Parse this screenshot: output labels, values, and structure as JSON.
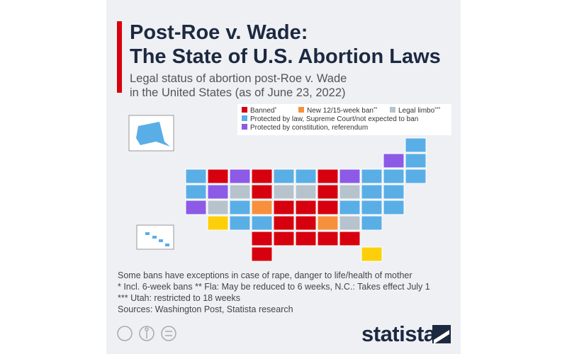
{
  "header": {
    "title_lines": [
      "Post-Roe v. Wade:",
      "The State of U.S. Abortion Laws"
    ],
    "subtitle_lines": [
      "Legal status of abortion post-Roe v. Wade",
      "in the United States (as of June 23, 2022)"
    ]
  },
  "legend": {
    "items": [
      {
        "label": "Banned",
        "mark": "*",
        "color": "#d7000f"
      },
      {
        "label": "New 12/15-week ban",
        "mark": "**",
        "color": "#f6903d"
      },
      {
        "label": "Legal limbo",
        "mark": "***",
        "color": "#b6c3cc"
      },
      {
        "label": "Protected by law, Supreme Court/not expected to ban",
        "color": "#5aaee6"
      },
      {
        "label": "Protected by constitution, referendum",
        "color": "#8c5ae6"
      }
    ]
  },
  "notes": [
    "Some bans have exceptions in case of rape, danger to life/health of mother",
    "* Incl. 6-week bans   ** Fla: May be reduced to 6 weeks, N.C.: Takes effect July 1",
    "*** Utah: restricted to 18 weeks",
    "Sources: Washington Post, Statista research"
  ],
  "footer": {
    "brand": "statista"
  }
}
